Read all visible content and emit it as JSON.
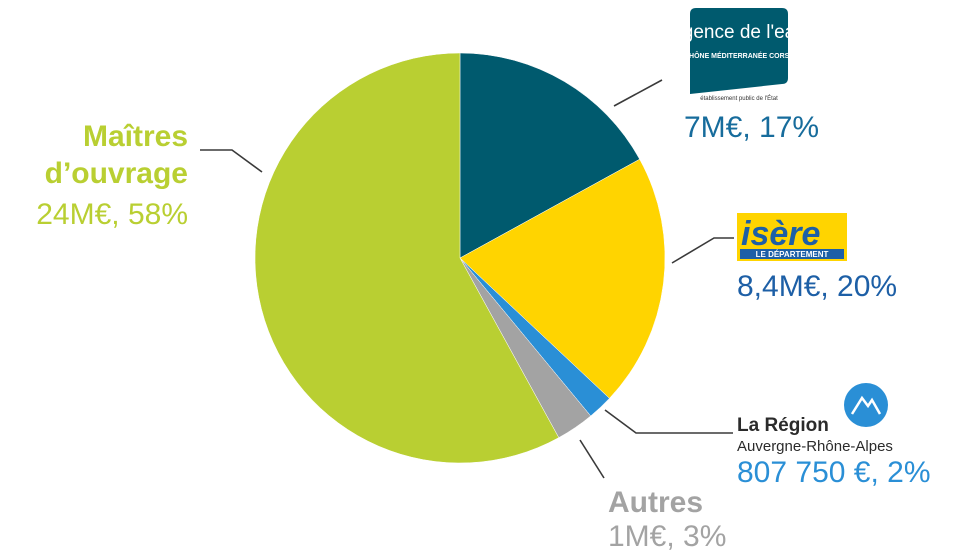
{
  "chart_data": {
    "type": "pie",
    "categories": [
      "agence de l'eau",
      "isère",
      "La Région",
      "Autres",
      "Maîtres d’ouvrage"
    ],
    "sublabels": [
      [
        "RHÔNE MÉDITERRANÉE CORSE",
        "établissement public de l'État"
      ],
      [
        "LE DÉPARTEMENT"
      ],
      [
        "Auvergne-Rhône-Alpes"
      ],
      [],
      []
    ],
    "values": [
      17,
      20,
      2,
      3,
      58
    ],
    "value_labels": [
      "7M€, 17%",
      "8,4M€, 20%",
      "807 750 €, 2%",
      "1M€, 3%",
      "24M€, 58%"
    ],
    "colors": [
      "#005a6e",
      "#ffd400",
      "#2a8fd6",
      "#a3a3a3",
      "#b9cf32"
    ]
  }
}
